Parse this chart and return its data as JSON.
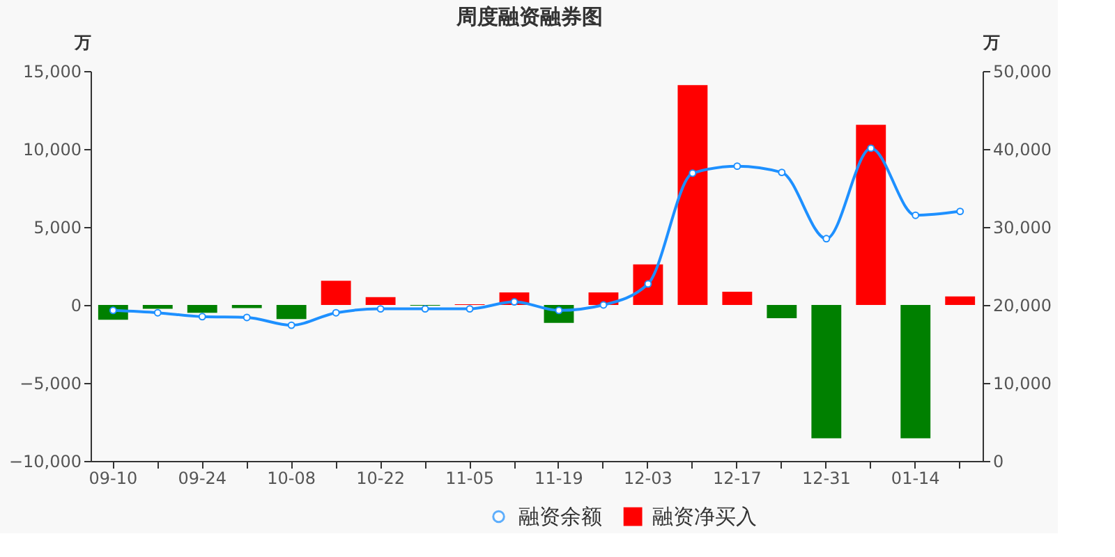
{
  "chart_data": {
    "type": "bar",
    "title": "周度融资融券图",
    "ylabel": "万",
    "y2label": "万",
    "categories": [
      "09-10",
      null,
      "09-24",
      null,
      "10-08",
      null,
      "10-22",
      null,
      "11-05",
      null,
      "11-19",
      null,
      "12-03",
      null,
      "12-17",
      null,
      "12-31",
      null,
      "01-14",
      null
    ],
    "series": [
      {
        "name": "融资余额",
        "type": "line",
        "axis": "y2",
        "color": "#1e90ff",
        "marker": "circle",
        "values": [
          19300,
          19000,
          18500,
          18400,
          17400,
          19000,
          19500,
          19500,
          19500,
          20400,
          19300,
          20000,
          22700,
          36900,
          37800,
          37000,
          28500,
          40100,
          31500,
          32000
        ]
      },
      {
        "name": "融资净买入",
        "type": "bar",
        "color": "#ff0000",
        "colors": [
          "#008000",
          "#008000",
          "#008000",
          "#008000",
          "#008000",
          "#ff0000",
          "#ff0000",
          "#008000",
          "#ff0000",
          "#ff0000",
          "#008000",
          "#ff0000",
          "#ff0000",
          "#ff0000",
          "#ff0000",
          "#008000",
          "#008000",
          "#ff0000",
          "#008000",
          "#ff0000"
        ],
        "values": [
          -950,
          -250,
          -500,
          -200,
          -900,
          1550,
          500,
          -50,
          50,
          800,
          -1150,
          800,
          2600,
          14100,
          850,
          -850,
          -8550,
          11550,
          -8550,
          550
        ]
      }
    ],
    "ylim": [
      -10000,
      15000
    ],
    "yticks": [
      {
        "value": -10000,
        "label": "−10,000"
      },
      {
        "value": -5000,
        "label": "−5,000"
      },
      0,
      {
        "value": 5000,
        "label": "5,000"
      },
      {
        "value": 10000,
        "label": "10,000"
      },
      {
        "value": 15000,
        "label": "15,000"
      }
    ],
    "y2lim": [
      0,
      50000
    ],
    "y2ticks": [
      0,
      {
        "value": 10000,
        "label": "10,000"
      },
      {
        "value": 20000,
        "label": "20,000"
      },
      {
        "value": 30000,
        "label": "30,000"
      },
      {
        "value": 40000,
        "label": "40,000"
      },
      {
        "value": 50000,
        "label": "50,000"
      }
    ],
    "grid": false,
    "legend": "bottom"
  }
}
